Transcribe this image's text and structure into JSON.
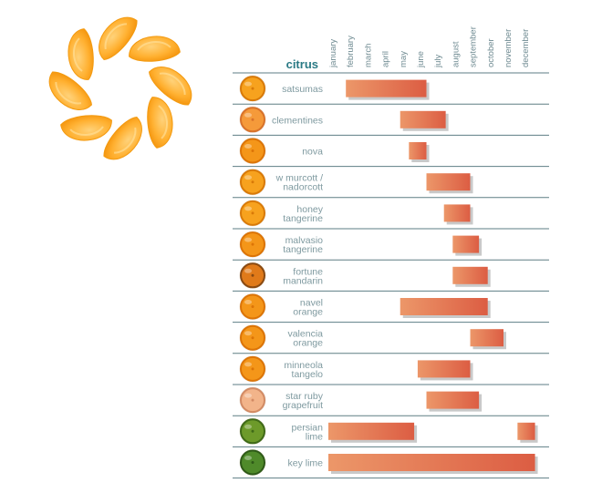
{
  "colors": {
    "bar_light": "#ec9769",
    "bar_dark": "#dc5d43",
    "shadow": "#c9c9c9",
    "divider": "#5e7e84",
    "label": "#7f9aa0",
    "title": "#2a7a85",
    "orange": "#f29a1c",
    "lime": "#5a8a2a"
  },
  "chart_data": {
    "type": "gantt",
    "title": "citrus",
    "months": [
      "january",
      "february",
      "march",
      "april",
      "may",
      "june",
      "july",
      "august",
      "september",
      "october",
      "november",
      "december"
    ],
    "rows": [
      {
        "label": [
          "satsumas"
        ],
        "fruit": "mandarin",
        "ranges": [
          [
            2.0,
            6.6
          ]
        ]
      },
      {
        "label": [
          "clementines"
        ],
        "fruit": "clementine",
        "ranges": [
          [
            5.1,
            7.7
          ]
        ]
      },
      {
        "label": [
          "nova"
        ],
        "fruit": "orange",
        "ranges": [
          [
            5.6,
            6.6
          ]
        ]
      },
      {
        "label": [
          "w murcott /",
          "nadorcott"
        ],
        "fruit": "mandarin",
        "ranges": [
          [
            6.6,
            9.1
          ]
        ]
      },
      {
        "label": [
          "honey",
          "tangerine"
        ],
        "fruit": "mandarin",
        "ranges": [
          [
            7.6,
            9.1
          ]
        ]
      },
      {
        "label": [
          "malvasio",
          "tangerine"
        ],
        "fruit": "orange",
        "ranges": [
          [
            8.1,
            9.6
          ]
        ]
      },
      {
        "label": [
          "fortune",
          "mandarin"
        ],
        "fruit": "fortune",
        "ranges": [
          [
            8.1,
            10.1
          ]
        ]
      },
      {
        "label": [
          "navel",
          "orange"
        ],
        "fruit": "orange",
        "ranges": [
          [
            5.1,
            10.1
          ]
        ]
      },
      {
        "label": [
          "valencia",
          "orange"
        ],
        "fruit": "orange",
        "ranges": [
          [
            9.1,
            11.0
          ]
        ]
      },
      {
        "label": [
          "minneola",
          "tangelo"
        ],
        "fruit": "orange",
        "ranges": [
          [
            6.1,
            9.1
          ]
        ]
      },
      {
        "label": [
          "star ruby",
          "grapefruit"
        ],
        "fruit": "grapefruit",
        "ranges": [
          [
            6.6,
            9.6
          ]
        ]
      },
      {
        "label": [
          "persian",
          "lime"
        ],
        "fruit": "lime",
        "ranges": [
          [
            1.0,
            5.9
          ],
          [
            11.8,
            12.8
          ]
        ]
      },
      {
        "label": [
          "key lime"
        ],
        "fruit": "keylime",
        "ranges": [
          [
            1.0,
            12.8
          ]
        ]
      }
    ]
  }
}
